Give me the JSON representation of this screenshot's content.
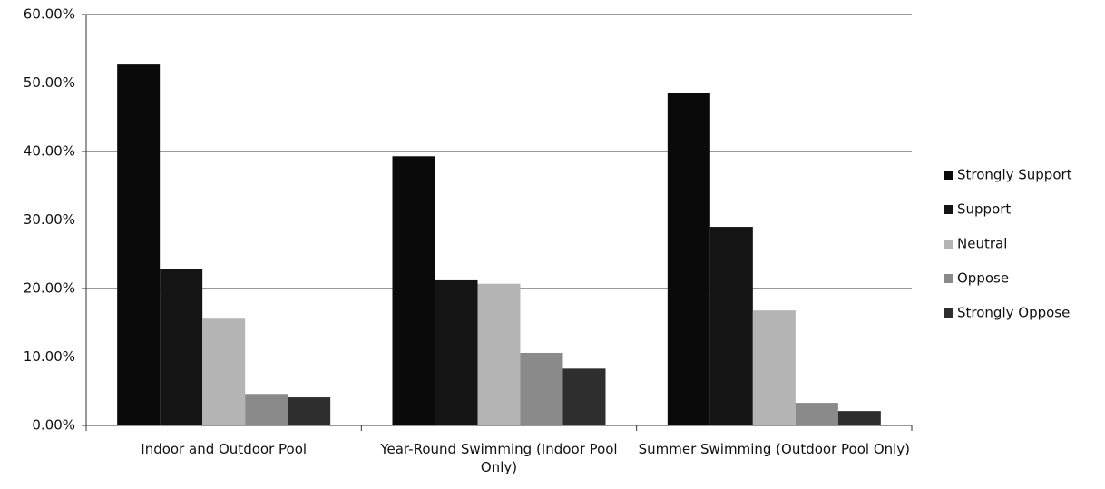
{
  "chart_data": {
    "type": "bar",
    "categories": [
      "Indoor and Outdoor Pool",
      "Year-Round Swimming (Indoor Pool Only)",
      "Summer Swimming (Outdoor Pool Only)"
    ],
    "series": [
      {
        "name": "Strongly Support",
        "color": "#0a0a0a",
        "values": [
          52.7,
          39.3,
          48.6
        ]
      },
      {
        "name": "Support",
        "color": "#141414",
        "values": [
          22.9,
          21.2,
          29.0
        ]
      },
      {
        "name": "Neutral",
        "color": "#b4b4b4",
        "values": [
          15.6,
          20.7,
          16.8
        ]
      },
      {
        "name": "Oppose",
        "color": "#8a8a8a",
        "values": [
          4.6,
          10.6,
          3.3
        ]
      },
      {
        "name": "Strongly Oppose",
        "color": "#2e2e2e",
        "values": [
          4.1,
          8.3,
          2.1
        ]
      }
    ],
    "ylim": [
      0,
      60
    ],
    "yticks": [
      {
        "value": 0,
        "label": "0.00%"
      },
      {
        "value": 10,
        "label": "10.00%"
      },
      {
        "value": 20,
        "label": "20.00%"
      },
      {
        "value": 30,
        "label": "30.00%"
      },
      {
        "value": 40,
        "label": "40.00%"
      },
      {
        "value": 50,
        "label": "50.00%"
      },
      {
        "value": 60,
        "label": "60.00%"
      }
    ],
    "grid": true,
    "legend": "right"
  }
}
